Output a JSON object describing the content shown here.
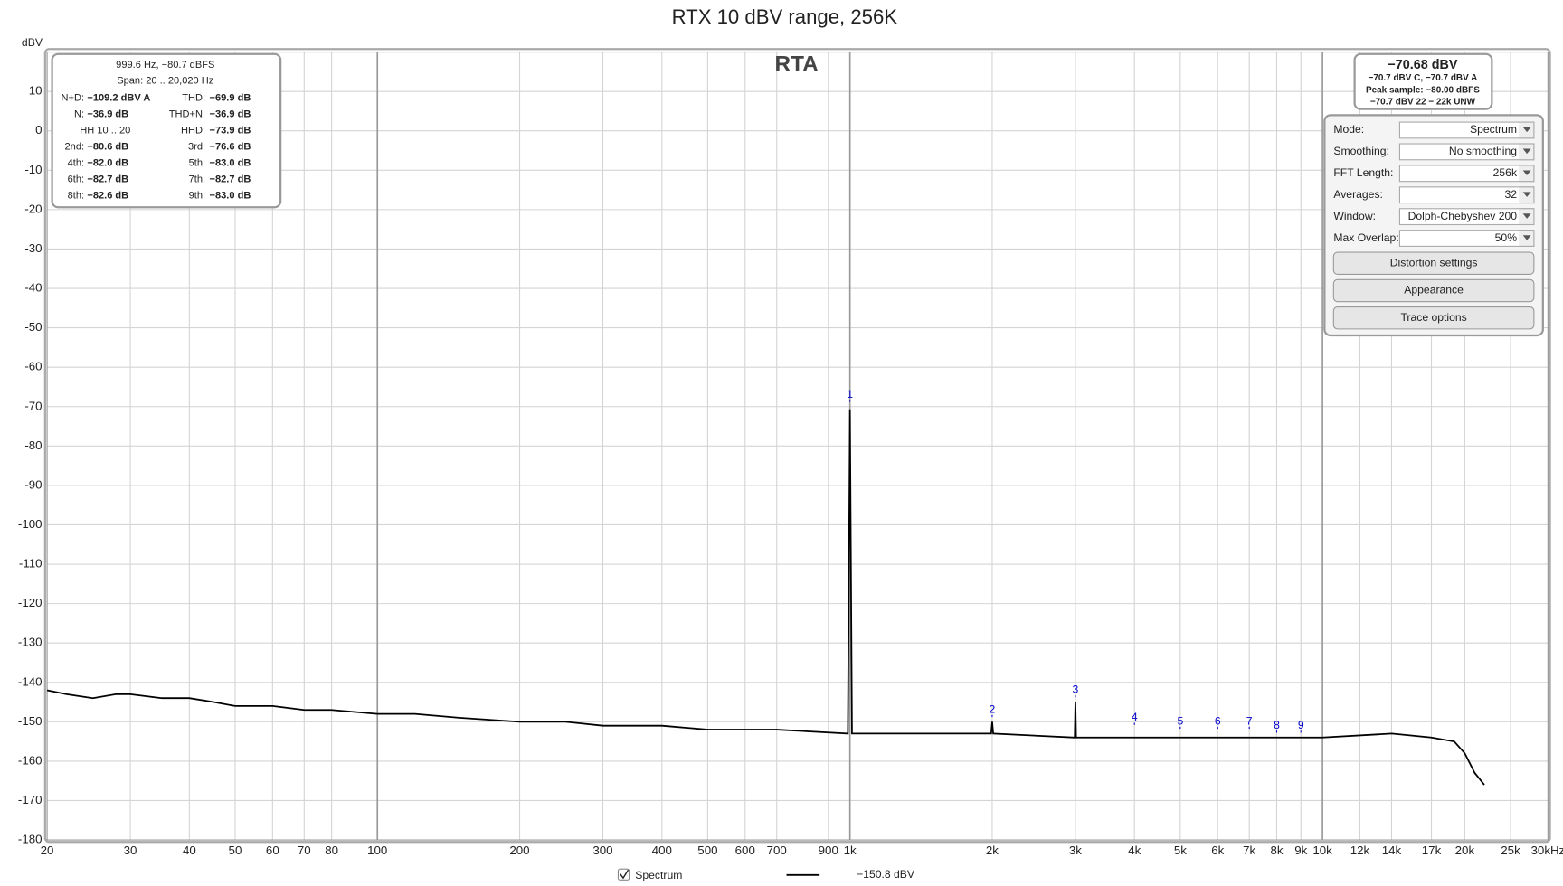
{
  "chart_data": {
    "type": "line",
    "title": "RTX 10 dBV range, 256K",
    "ylabel": "dBV",
    "overlay_label": "RTA",
    "x_scale": "log",
    "grid": true,
    "xlim": [
      20,
      30000
    ],
    "ylim": [
      -180,
      20
    ],
    "xticks": [
      20,
      30,
      40,
      50,
      60,
      70,
      80,
      100,
      200,
      300,
      400,
      500,
      600,
      700,
      900,
      {
        "value": 1000,
        "label": "1k"
      },
      {
        "value": 2000,
        "label": "2k"
      },
      {
        "value": 3000,
        "label": "3k"
      },
      {
        "value": 4000,
        "label": "4k"
      },
      {
        "value": 5000,
        "label": "5k"
      },
      {
        "value": 6000,
        "label": "6k"
      },
      {
        "value": 7000,
        "label": "7k"
      },
      {
        "value": 8000,
        "label": "8k"
      },
      {
        "value": 9000,
        "label": "9k"
      },
      {
        "value": 10000,
        "label": "10k"
      },
      {
        "value": 12000,
        "label": "12k"
      },
      {
        "value": 14000,
        "label": "14k"
      },
      {
        "value": 17000,
        "label": "17k"
      },
      {
        "value": 20000,
        "label": "20k"
      },
      {
        "value": 25000,
        "label": "25k"
      },
      {
        "value": 30000,
        "label": "30kHz"
      }
    ],
    "yticks": [
      -180,
      -170,
      -160,
      -150,
      -140,
      -130,
      -120,
      -110,
      -100,
      -90,
      -80,
      -70,
      -60,
      -50,
      -40,
      -30,
      -20,
      -10,
      0,
      10
    ],
    "x": [
      20,
      22,
      25,
      28,
      30,
      35,
      40,
      45,
      50,
      60,
      70,
      80,
      100,
      120,
      150,
      200,
      250,
      300,
      400,
      500,
      700,
      990,
      1000,
      1010,
      1500,
      1990,
      2000,
      2010,
      2990,
      3000,
      3010,
      4000,
      5000,
      7000,
      10000,
      14000,
      17000,
      19000,
      20000,
      21000,
      22000
    ],
    "series": [
      {
        "name": "Spectrum",
        "color": "#000000",
        "values": [
          -142,
          -143,
          -144,
          -143,
          -143,
          -144,
          -144,
          -145,
          -146,
          -146,
          -147,
          -147,
          -148,
          -148,
          -149,
          -150,
          -150,
          -151,
          -151,
          -152,
          -152,
          -153,
          -70.7,
          -153,
          -153,
          -153,
          -150,
          -153,
          -154,
          -145,
          -154,
          -154,
          -154,
          -154,
          -154,
          -153,
          -154,
          -155,
          -158,
          -163,
          -166
        ]
      }
    ],
    "legend_readout": "−150.8 dBV",
    "markers": [
      {
        "label": "1",
        "x": 1000,
        "y": -67
      },
      {
        "label": "2",
        "x": 2000,
        "y": -147
      },
      {
        "label": "3",
        "x": 3000,
        "y": -142
      },
      {
        "label": "4",
        "x": 4000,
        "y": -149
      },
      {
        "label": "5",
        "x": 5000,
        "y": -150
      },
      {
        "label": "6",
        "x": 6000,
        "y": -150
      },
      {
        "label": "7",
        "x": 7000,
        "y": -150
      },
      {
        "label": "8",
        "x": 8000,
        "y": -151
      },
      {
        "label": "9",
        "x": 9000,
        "y": -151
      }
    ],
    "marker_color": "#0000cc"
  },
  "readout": {
    "header": [
      "999.6 Hz, −80.7 dBFS",
      "Span: 20 .. 20,020 Hz"
    ],
    "rows": [
      {
        "left": [
          "N+D:",
          "−109.2 dBV A"
        ],
        "right": [
          "THD:",
          "−69.9 dB"
        ]
      },
      {
        "left": [
          "N:",
          "−36.9 dB"
        ],
        "right": [
          "THD+N:",
          "−36.9 dB"
        ]
      },
      {
        "left": [
          "HH 10 .. 20"
        ],
        "right": [
          "HHD:",
          "−73.9 dB"
        ]
      },
      {
        "left": [
          "2nd:",
          "−80.6 dB"
        ],
        "right": [
          "3rd:",
          "−76.6 dB"
        ]
      },
      {
        "left": [
          "4th:",
          "−82.0 dB"
        ],
        "right": [
          "5th:",
          "−83.0 dB"
        ]
      },
      {
        "left": [
          "6th:",
          "−82.7 dB"
        ],
        "right": [
          "7th:",
          "−82.7 dB"
        ]
      },
      {
        "left": [
          "8th:",
          "−82.6 dB"
        ],
        "right": [
          "9th:",
          "−83.0 dB"
        ]
      }
    ]
  },
  "level": {
    "main": "−70.68 dBV",
    "lines": [
      "−70.7 dBV C, −70.7 dBV A",
      "Peak sample: −80.00 dBFS",
      "−70.7 dBV 22 − 22k UNW"
    ]
  },
  "controls": {
    "fields": [
      {
        "label": "Mode:",
        "value": "Spectrum"
      },
      {
        "label": "Smoothing:",
        "value": "No  smoothing"
      },
      {
        "label": "FFT Length:",
        "value": "256k"
      },
      {
        "label": "Averages:",
        "value": "32"
      },
      {
        "label": "Window:",
        "value": "Dolph-Chebyshev 200"
      },
      {
        "label": "Max Overlap:",
        "value": "50%"
      }
    ],
    "buttons": [
      "Distortion settings",
      "Appearance",
      "Trace options"
    ]
  }
}
